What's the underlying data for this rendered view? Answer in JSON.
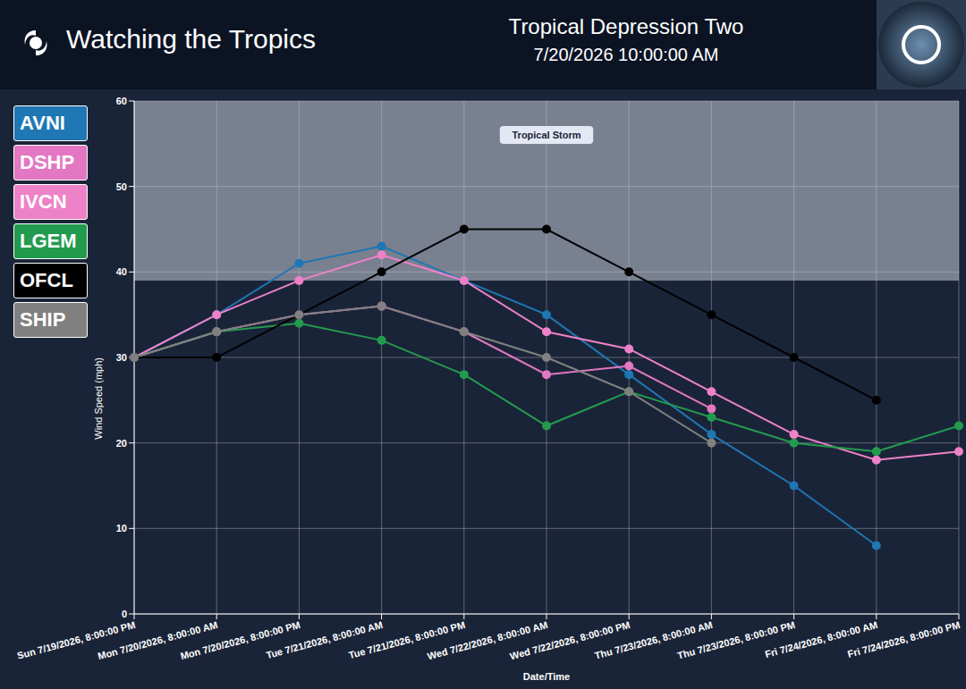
{
  "header": {
    "brand": "Watching the Tropics"
  },
  "chart_data": {
    "type": "line",
    "title": "Tropical Depression Two",
    "subtitle": "7/20/2026 10:00:00 AM",
    "x_label": "Date/Time",
    "y_label": "Wind Speed (mph)",
    "categories": [
      "Sun 7/19/2026, 8:00:00 PM",
      "Mon 7/20/2026, 8:00:00 AM",
      "Mon 7/20/2026, 8:00:00 PM",
      "Tue 7/21/2026, 8:00:00 AM",
      "Tue 7/21/2026, 8:00:00 PM",
      "Wed 7/22/2026, 8:00:00 AM",
      "Wed 7/22/2026, 8:00:00 PM",
      "Thu 7/23/2026, 8:00:00 AM",
      "Thu 7/23/2026, 8:00:00 PM",
      "Fri 7/24/2026, 8:00:00 AM",
      "Fri 7/24/2026, 8:00:00 PM"
    ],
    "series": [
      {
        "name": "AVNI",
        "color": "#1f77b4",
        "marker": "circle",
        "values": [
          30,
          35,
          41,
          43,
          39,
          35,
          28,
          21,
          15,
          8,
          null
        ]
      },
      {
        "name": "DSHP",
        "color": "#e377c2",
        "marker": "circle",
        "values": [
          30,
          33,
          35,
          36,
          33,
          28,
          29,
          24,
          null,
          null,
          null
        ]
      },
      {
        "name": "IVCN",
        "color": "#ee82c8",
        "marker": "circle",
        "values": [
          30,
          35,
          39,
          42,
          39,
          33,
          31,
          26,
          21,
          18,
          19
        ]
      },
      {
        "name": "LGEM",
        "color": "#239b4e",
        "marker": "circle",
        "values": [
          30,
          33,
          34,
          32,
          28,
          22,
          26,
          23,
          20,
          19,
          22
        ]
      },
      {
        "name": "OFCL",
        "color": "#000000",
        "marker": "circle",
        "values": [
          30,
          30,
          35,
          40,
          45,
          45,
          40,
          35,
          30,
          25,
          null
        ]
      },
      {
        "name": "SHIP",
        "color": "#808080",
        "marker": "circle",
        "values": [
          30,
          33,
          35,
          36,
          33,
          30,
          26,
          20,
          null,
          null,
          null
        ]
      }
    ],
    "bands": [
      {
        "label": "Tropical Storm",
        "y1": 39,
        "y2": 60
      }
    ],
    "ylim": [
      0,
      60
    ],
    "yticks": [
      0,
      10,
      20,
      30,
      40,
      50,
      60
    ],
    "grid": true,
    "legend": "left"
  }
}
